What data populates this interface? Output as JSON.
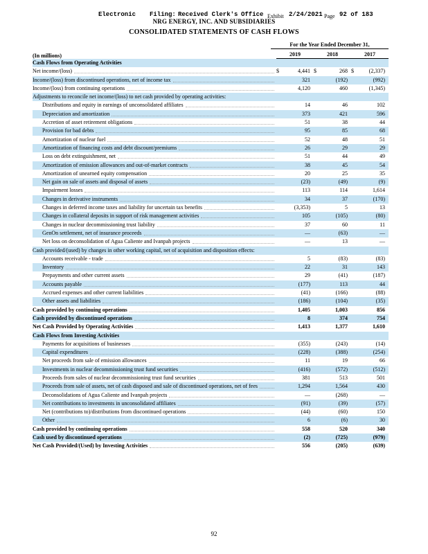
{
  "stamp": {
    "word1": "Electronic",
    "word2": "Filing:",
    "word3": "Received Clerk's",
    "word4": "Office",
    "exhibit": "Exhibit",
    "date": "2/24/2021",
    "page_word": "Page",
    "page_info": "92 of 183"
  },
  "header": {
    "company": "NRG ENERGY, INC. AND SUBSIDIARIES",
    "title": "CONSOLIDATED STATEMENTS OF CASH FLOWS"
  },
  "table": {
    "period_header": "For the Year Ended December 31,",
    "units_label": "(In millions)",
    "years": [
      "2019",
      "2018",
      "2017"
    ],
    "rows": [
      {
        "label": "Cash Flows from Operating Activities",
        "indent": 0,
        "bold": true,
        "values": null
      },
      {
        "label": "Net income/(loss)",
        "indent": 0,
        "dollar": true,
        "values": [
          "4,441",
          "268",
          "(2,337)"
        ]
      },
      {
        "label": "Income/(loss) from discontinued operations, net of income tax",
        "indent": 0,
        "values": [
          "321",
          "(192)",
          "(992)"
        ]
      },
      {
        "label": "Income/(loss) from continuing operations",
        "indent": 0,
        "values": [
          "4,120",
          "460",
          "(1,345)"
        ]
      },
      {
        "label": "Adjustments to reconcile net income/(loss) to net cash provided by operating activities:",
        "indent": 0,
        "values": null
      },
      {
        "label": "Distributions and equity in earnings of unconsolidated affiliates",
        "indent": 1,
        "values": [
          "14",
          "46",
          "102"
        ]
      },
      {
        "label": "Depreciation and amortization",
        "indent": 1,
        "values": [
          "373",
          "421",
          "596"
        ]
      },
      {
        "label": "Accretion of asset retirement obligations",
        "indent": 1,
        "values": [
          "51",
          "38",
          "44"
        ]
      },
      {
        "label": "Provision for bad debts",
        "indent": 1,
        "values": [
          "95",
          "85",
          "68"
        ]
      },
      {
        "label": "Amortization of nuclear fuel",
        "indent": 1,
        "values": [
          "52",
          "48",
          "51"
        ]
      },
      {
        "label": "Amortization of financing costs and debt discount/premiums",
        "indent": 1,
        "values": [
          "26",
          "29",
          "29"
        ]
      },
      {
        "label": "Loss on debt extinguishment, net",
        "indent": 1,
        "values": [
          "51",
          "44",
          "49"
        ]
      },
      {
        "label": "Amortization of emission allowances and out-of-market contracts",
        "indent": 1,
        "values": [
          "38",
          "45",
          "54"
        ]
      },
      {
        "label": "Amortization of unearned equity compensation",
        "indent": 1,
        "values": [
          "20",
          "25",
          "35"
        ]
      },
      {
        "label": "Net gain on sale of assets and disposal of assets",
        "indent": 1,
        "values": [
          "(23)",
          "(49)",
          "(9)"
        ]
      },
      {
        "label": "Impairment losses",
        "indent": 1,
        "values": [
          "113",
          "114",
          "1,614"
        ]
      },
      {
        "label": "Changes in derivative instruments",
        "indent": 1,
        "values": [
          "34",
          "37",
          "(170)"
        ]
      },
      {
        "label": "Changes in deferred income taxes and liability for uncertain tax benefits",
        "indent": 1,
        "values": [
          "(3,353)",
          "5",
          "13"
        ]
      },
      {
        "label": "Changes in collateral deposits in support of risk management activities",
        "indent": 1,
        "values": [
          "105",
          "(105)",
          "(80)"
        ]
      },
      {
        "label": "Changes in nuclear decommissioning trust liability",
        "indent": 1,
        "values": [
          "37",
          "60",
          "11"
        ]
      },
      {
        "label": "GenOn settlement, net of insurance proceeds",
        "indent": 1,
        "values": [
          "—",
          "(63)",
          "—"
        ]
      },
      {
        "label": "Net loss on deconsolidation of Agua Caliente and Ivanpah projects",
        "indent": 1,
        "values": [
          "—",
          "13",
          "—"
        ]
      },
      {
        "label": "Cash provided/(used) by changes in other working capital, net of acquisition and disposition effects:",
        "indent": 0,
        "values": null
      },
      {
        "label": "Accounts receivable - trade",
        "indent": 1,
        "values": [
          "5",
          "(83)",
          "(83)"
        ]
      },
      {
        "label": "Inventory",
        "indent": 1,
        "values": [
          "22",
          "31",
          "143"
        ]
      },
      {
        "label": "Prepayments and other current assets",
        "indent": 1,
        "values": [
          "29",
          "(41)",
          "(187)"
        ]
      },
      {
        "label": "Accounts payable",
        "indent": 1,
        "values": [
          "(177)",
          "113",
          "44"
        ]
      },
      {
        "label": "Accrued expenses and other current liabilities",
        "indent": 1,
        "values": [
          "(41)",
          "(166)",
          "(88)"
        ]
      },
      {
        "label": "Other assets and liabilities",
        "indent": 1,
        "values": [
          "(186)",
          "(104)",
          "(35)"
        ]
      },
      {
        "label": "Cash provided by continuing operations",
        "indent": 0,
        "bold": true,
        "values": [
          "1,405",
          "1,003",
          "856"
        ]
      },
      {
        "label": "Cash provided by discontinued operations",
        "indent": 0,
        "bold": true,
        "values": [
          "8",
          "374",
          "754"
        ]
      },
      {
        "label": "Net Cash Provided by Operating Activities",
        "indent": 0,
        "bold": true,
        "values": [
          "1,413",
          "1,377",
          "1,610"
        ]
      },
      {
        "label": "Cash Flows from Investing Activities",
        "indent": 0,
        "bold": true,
        "values": null
      },
      {
        "label": "Payments for acquisitions of businesses",
        "indent": 1,
        "values": [
          "(355)",
          "(243)",
          "(14)"
        ]
      },
      {
        "label": "Capital expenditures",
        "indent": 1,
        "values": [
          "(228)",
          "(388)",
          "(254)"
        ]
      },
      {
        "label": "Net proceeds from sale of emission allowances",
        "indent": 1,
        "values": [
          "11",
          "19",
          "66"
        ]
      },
      {
        "label": "Investments in nuclear decommissioning trust fund securities",
        "indent": 1,
        "values": [
          "(416)",
          "(572)",
          "(512)"
        ]
      },
      {
        "label": "Proceeds from sales of nuclear decommissioning trust fund securities",
        "indent": 1,
        "values": [
          "381",
          "513",
          "501"
        ]
      },
      {
        "label": "Proceeds from sale of assets, net of cash disposed and sale of discontinued operations, net of fees",
        "indent": 1,
        "values": [
          "1,294",
          "1,564",
          "430"
        ]
      },
      {
        "label": "Deconsolidations of Agua Caliente and Ivanpah projects",
        "indent": 1,
        "values": [
          "—",
          "(268)",
          "—"
        ]
      },
      {
        "label": "Net contributions to investments in unconsolidated affiliates",
        "indent": 1,
        "values": [
          "(91)",
          "(39)",
          "(57)"
        ]
      },
      {
        "label": "Net (contributions to)/distributions from discontinued operations",
        "indent": 1,
        "values": [
          "(44)",
          "(60)",
          "150"
        ]
      },
      {
        "label": "Other",
        "indent": 1,
        "values": [
          "6",
          "(6)",
          "30"
        ]
      },
      {
        "label": "Cash provided by continuing operations",
        "indent": 0,
        "bold": true,
        "values": [
          "558",
          "520",
          "340"
        ]
      },
      {
        "label": "Cash used by discontinued operations",
        "indent": 0,
        "bold": true,
        "values": [
          "(2)",
          "(725)",
          "(979)"
        ]
      },
      {
        "label": "Net Cash Provided/(Used) by Investing Activities",
        "indent": 0,
        "bold": true,
        "values": [
          "556",
          "(205)",
          "(639)"
        ]
      }
    ]
  },
  "footer": {
    "page_number": "92"
  }
}
